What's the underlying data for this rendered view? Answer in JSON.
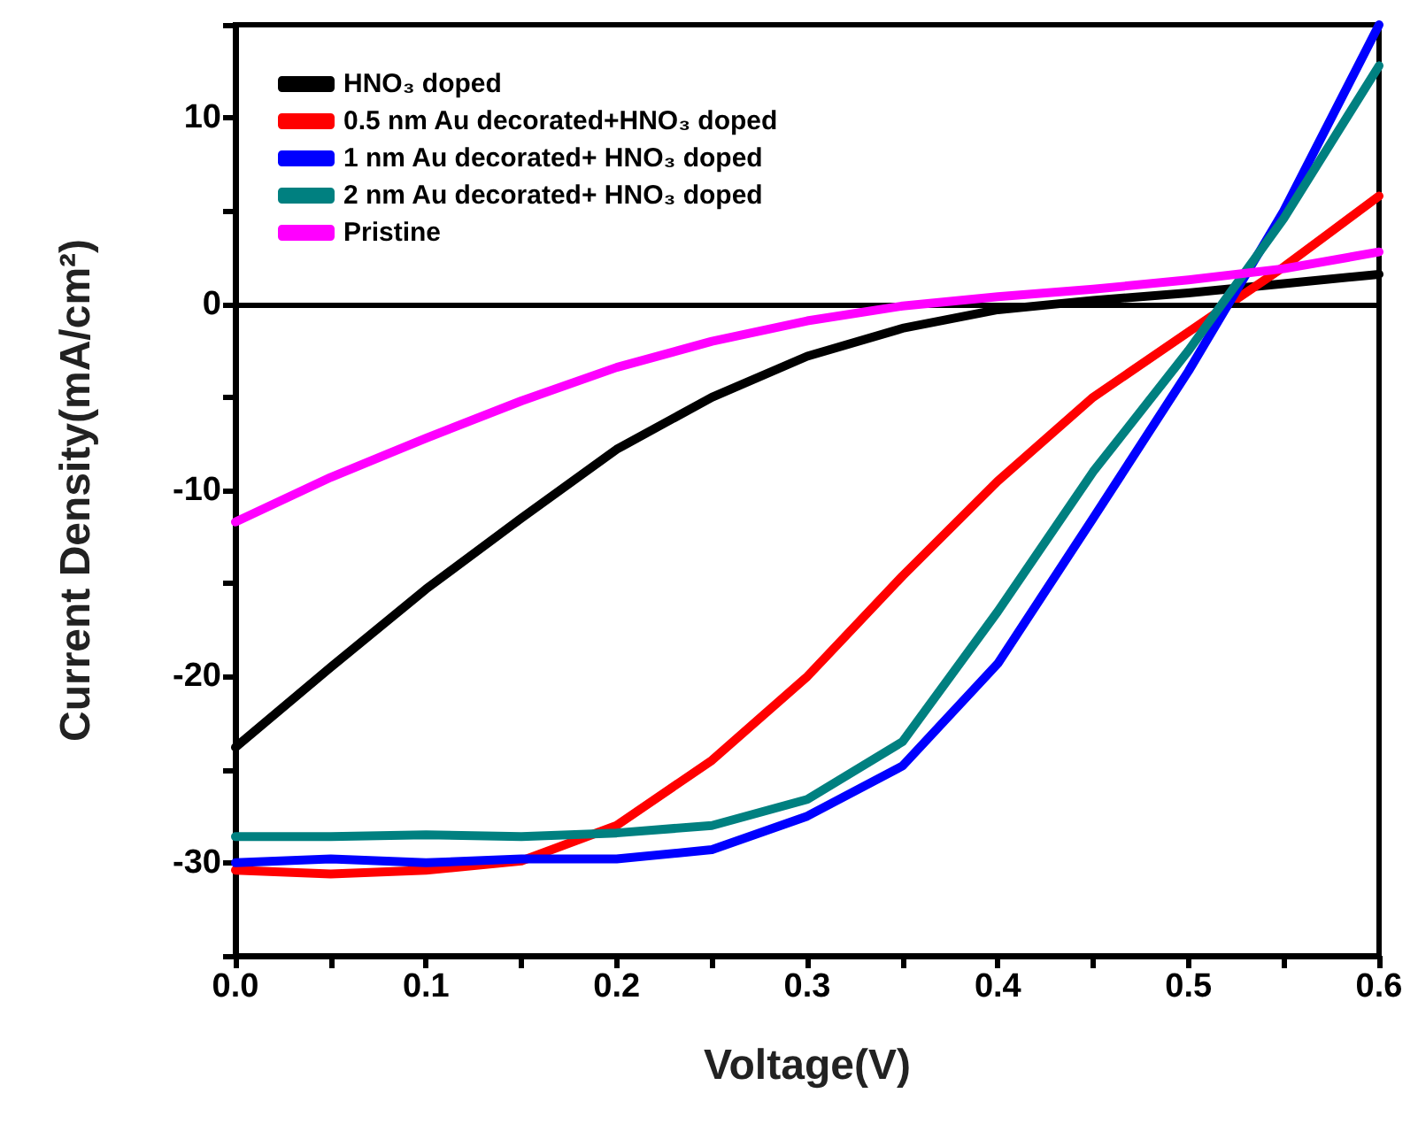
{
  "chart_data": {
    "type": "line",
    "xlabel": "Voltage(V)",
    "ylabel": "Current Density(mA/cm²)",
    "xlim": [
      0,
      0.6
    ],
    "xticks": [
      {
        "value": 0,
        "label": "0.0"
      },
      {
        "value": 0.05,
        "label": null
      },
      0.1,
      {
        "value": 0.15,
        "label": null
      },
      0.2,
      {
        "value": 0.25,
        "label": null
      },
      0.3,
      {
        "value": 0.35,
        "label": null
      },
      0.4,
      {
        "value": 0.45,
        "label": null
      },
      0.5,
      {
        "value": 0.55,
        "label": null
      },
      0.6
    ],
    "ylim": [
      -35,
      15
    ],
    "yticks": [
      {
        "value": -35,
        "label": null
      },
      -30,
      {
        "value": -25,
        "label": null
      },
      -20,
      {
        "value": -15,
        "label": null
      },
      -10,
      {
        "value": -5,
        "label": null
      },
      0,
      {
        "value": 5,
        "label": null
      },
      10,
      {
        "value": 15,
        "label": null
      }
    ],
    "x": [
      0,
      0.05,
      0.1,
      0.15,
      0.2,
      0.25,
      0.3,
      0.35,
      0.4,
      0.45,
      0.5,
      0.55,
      0.6
    ],
    "series": [
      {
        "name": "HNO₃ doped",
        "color": "#000000",
        "values": [
          -23.8,
          -19.5,
          -15.3,
          -11.5,
          -7.8,
          -5,
          -2.8,
          -1.3,
          -0.3,
          0.2,
          0.6,
          1.1,
          1.6
        ]
      },
      {
        "name": "0.5 nm Au decorated+HNO₃ doped",
        "color": "#ff0000",
        "values": [
          -30.4,
          -30.6,
          -30.4,
          -29.9,
          -28,
          -24.5,
          -20,
          -14.6,
          -9.5,
          -5,
          -1.5,
          2,
          5.8
        ]
      },
      {
        "name": "1 nm Au decorated+ HNO₃ doped",
        "color": "#0000ff",
        "values": [
          -30,
          -29.8,
          -30,
          -29.8,
          -29.8,
          -29.3,
          -27.5,
          -24.8,
          -19.3,
          -11.5,
          -3.6,
          5,
          15
        ]
      },
      {
        "name": "2 nm Au decorated+ HNO₃ doped",
        "color": "#008080",
        "values": [
          -28.6,
          -28.6,
          -28.5,
          -28.6,
          -28.4,
          -28,
          -26.6,
          -23.5,
          -16.5,
          -9,
          -2.5,
          4.6,
          12.8
        ]
      },
      {
        "name": "Pristine",
        "color": "#ff00ff",
        "values": [
          -11.7,
          -9.3,
          -7.2,
          -5.2,
          -3.4,
          -2,
          -0.9,
          -0.1,
          0.4,
          0.8,
          1.3,
          1.9,
          2.8
        ]
      }
    ],
    "ref_lines": [
      {
        "axis": "y",
        "value": 0,
        "color": "#000000"
      }
    ],
    "legend": "top left",
    "marker": "none",
    "line_style": "solid",
    "grid": false
  }
}
